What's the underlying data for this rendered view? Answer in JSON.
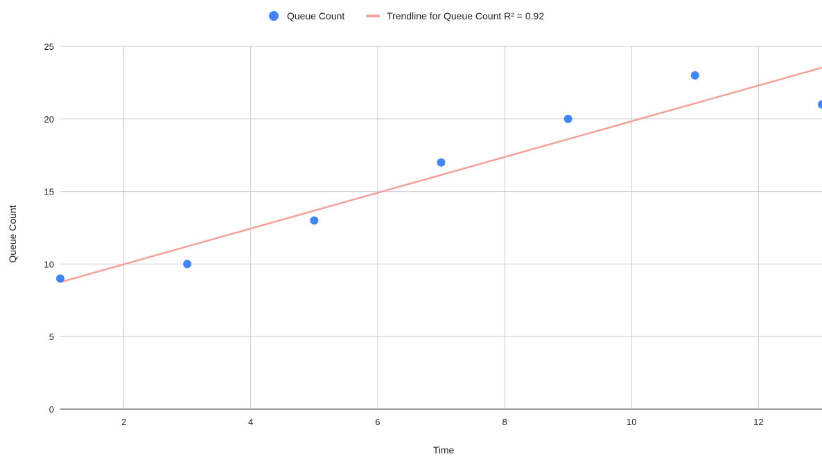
{
  "chart_data": {
    "type": "scatter",
    "xlabel": "Time",
    "ylabel": "Queue Count",
    "xlim": [
      1,
      13
    ],
    "ylim": [
      0,
      25
    ],
    "x_ticks": [
      2,
      4,
      6,
      8,
      10,
      12
    ],
    "y_ticks": [
      0,
      5,
      10,
      15,
      20,
      25
    ],
    "grid": true,
    "legend_position": "top-center",
    "series": [
      {
        "name": "Queue Count",
        "color": "#4285f4",
        "marker": "circle",
        "x": [
          1,
          3,
          5,
          7,
          9,
          11,
          13
        ],
        "y": [
          9,
          10,
          13,
          17,
          20,
          23,
          21
        ]
      }
    ],
    "trendline": {
      "name": "Trendline for Queue Count R² = 0.92",
      "color": "#f4a19a",
      "type": "linear",
      "r_squared": 0.92
    }
  }
}
